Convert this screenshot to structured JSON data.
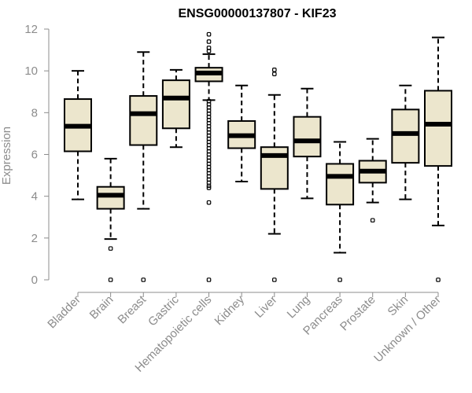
{
  "chart_data": {
    "type": "boxplot",
    "title": "ENSG00000137807 - KIF23",
    "xlabel": "",
    "ylabel": "Expression",
    "ylim": [
      0,
      12
    ],
    "yticks": [
      0,
      2,
      4,
      6,
      8,
      10,
      12
    ],
    "grid": false,
    "colors": {
      "box_fill": "#ece6cd",
      "stroke": "#000000",
      "axis": "#8c8c8c"
    },
    "categories": [
      "Bladder",
      "Brain",
      "Breast",
      "Gastric",
      "Hematopoietic cells",
      "Kidney",
      "Liver",
      "Lung",
      "Pancreas",
      "Prostate",
      "Skin",
      "Unknown / Other"
    ],
    "series": [
      {
        "name": "Bladder",
        "min": 3.85,
        "q1": 6.15,
        "median": 7.35,
        "q3": 8.65,
        "max": 10.0,
        "outliers": []
      },
      {
        "name": "Brain",
        "min": 1.95,
        "q1": 3.4,
        "median": 4.05,
        "q3": 4.45,
        "max": 5.8,
        "outliers": [
          1.5,
          0.0
        ]
      },
      {
        "name": "Breast",
        "min": 3.4,
        "q1": 6.45,
        "median": 7.95,
        "q3": 8.8,
        "max": 10.9,
        "outliers": [
          0.0
        ]
      },
      {
        "name": "Gastric",
        "min": 6.35,
        "q1": 7.25,
        "median": 8.7,
        "q3": 9.55,
        "max": 10.05,
        "outliers": []
      },
      {
        "name": "Hematopoietic cells",
        "min": 8.6,
        "q1": 9.5,
        "median": 9.9,
        "q3": 10.15,
        "max": 10.8,
        "outliers": [
          11.75,
          11.4,
          11.1,
          10.95,
          8.55,
          8.4,
          8.25,
          8.1,
          7.95,
          7.8,
          7.65,
          7.5,
          7.35,
          7.2,
          7.05,
          6.9,
          6.75,
          6.6,
          6.45,
          6.3,
          6.15,
          6.0,
          5.85,
          5.7,
          5.55,
          5.4,
          5.25,
          5.1,
          4.95,
          4.8,
          4.65,
          4.5,
          4.4,
          3.7,
          0.0
        ]
      },
      {
        "name": "Kidney",
        "min": 4.7,
        "q1": 6.3,
        "median": 6.9,
        "q3": 7.6,
        "max": 9.3,
        "outliers": []
      },
      {
        "name": "Liver",
        "min": 2.2,
        "q1": 4.35,
        "median": 5.95,
        "q3": 6.35,
        "max": 8.85,
        "outliers": [
          10.05,
          9.85,
          0.0
        ]
      },
      {
        "name": "Lung",
        "min": 3.9,
        "q1": 5.9,
        "median": 6.65,
        "q3": 7.8,
        "max": 9.15,
        "outliers": []
      },
      {
        "name": "Pancreas",
        "min": 1.3,
        "q1": 3.6,
        "median": 4.95,
        "q3": 5.55,
        "max": 6.6,
        "outliers": [
          0.0
        ]
      },
      {
        "name": "Prostate",
        "min": 3.7,
        "q1": 4.65,
        "median": 5.2,
        "q3": 5.7,
        "max": 6.75,
        "outliers": [
          2.85
        ]
      },
      {
        "name": "Skin",
        "min": 3.85,
        "q1": 5.6,
        "median": 7.0,
        "q3": 8.15,
        "max": 9.3,
        "outliers": []
      },
      {
        "name": "Unknown / Other",
        "min": 2.6,
        "q1": 5.45,
        "median": 7.45,
        "q3": 9.05,
        "max": 11.6,
        "outliers": [
          0.0
        ]
      }
    ]
  }
}
